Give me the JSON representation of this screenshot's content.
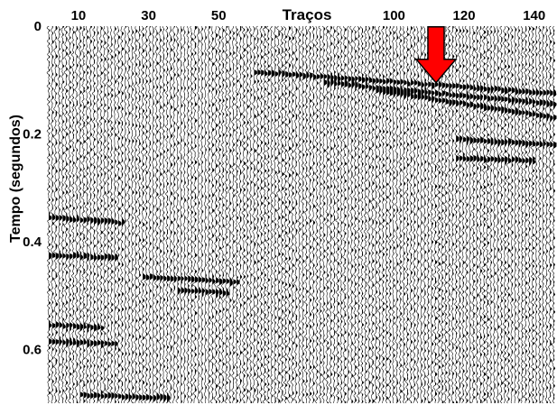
{
  "chart_data": {
    "type": "seismic_section",
    "title": "",
    "xlabel": "Traços",
    "ylabel": "Tempo (segundos)",
    "x_tick_labels": [
      "10",
      "30",
      "50",
      "100",
      "120",
      "140"
    ],
    "x_tick_values": [
      10,
      30,
      50,
      100,
      120,
      140
    ],
    "y_tick_labels": [
      "0",
      "0.2",
      "0.4",
      "0.6"
    ],
    "y_tick_values": [
      0,
      0.2,
      0.4,
      0.6
    ],
    "xlim": [
      1,
      146
    ],
    "ylim": [
      0,
      0.7
    ],
    "y_inverted": true,
    "trace_count": 146,
    "events": [
      {
        "type": "reflector",
        "x_start": 60,
        "x_end": 146,
        "t_start": 0.085,
        "t_end": 0.125
      },
      {
        "type": "reflector",
        "x_start": 80,
        "x_end": 146,
        "t_start": 0.105,
        "t_end": 0.145
      },
      {
        "type": "reflector",
        "x_start": 95,
        "x_end": 146,
        "t_start": 0.12,
        "t_end": 0.17
      },
      {
        "type": "reflector",
        "x_start": 118,
        "x_end": 146,
        "t_start": 0.21,
        "t_end": 0.22
      },
      {
        "type": "reflector",
        "x_start": 118,
        "x_end": 140,
        "t_start": 0.245,
        "t_end": 0.25
      },
      {
        "type": "reflector",
        "x_start": 1,
        "x_end": 22,
        "t_start": 0.355,
        "t_end": 0.365
      },
      {
        "type": "reflector",
        "x_start": 1,
        "x_end": 20,
        "t_start": 0.425,
        "t_end": 0.43
      },
      {
        "type": "reflector",
        "x_start": 28,
        "x_end": 55,
        "t_start": 0.465,
        "t_end": 0.475
      },
      {
        "type": "reflector",
        "x_start": 38,
        "x_end": 52,
        "t_start": 0.49,
        "t_end": 0.495
      },
      {
        "type": "reflector",
        "x_start": 1,
        "x_end": 16,
        "t_start": 0.555,
        "t_end": 0.56
      },
      {
        "type": "reflector",
        "x_start": 1,
        "x_end": 20,
        "t_start": 0.585,
        "t_end": 0.59
      },
      {
        "type": "reflector",
        "x_start": 10,
        "x_end": 35,
        "t_start": 0.685,
        "t_end": 0.69
      }
    ],
    "annotation": {
      "type": "arrow",
      "color": "#ff0000",
      "x": 112,
      "t": 0.105,
      "direction": "down"
    }
  }
}
